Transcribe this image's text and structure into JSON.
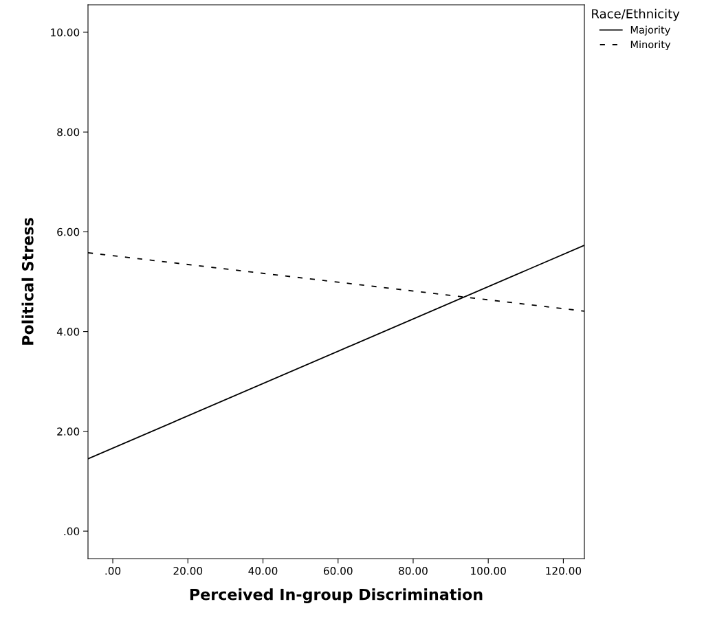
{
  "chart_data": {
    "type": "line",
    "xlabel": "Perceived In-group Discrimination",
    "ylabel": "Political Stress",
    "legend_title": "Race/Ethnicity",
    "legend": "top right",
    "grid": false,
    "marker": "none",
    "xlim": [
      -6.6,
      125.6
    ],
    "ylim": [
      -0.55,
      10.55
    ],
    "xticks": [
      {
        "value": 0,
        "label": ".00"
      },
      {
        "value": 20,
        "label": "20.00"
      },
      {
        "value": 40,
        "label": "40.00"
      },
      {
        "value": 60,
        "label": "60.00"
      },
      {
        "value": 80,
        "label": "80.00"
      },
      {
        "value": 100,
        "label": "100.00"
      },
      {
        "value": 120,
        "label": "120.00"
      }
    ],
    "yticks": [
      {
        "value": 0,
        "label": ".00"
      },
      {
        "value": 2,
        "label": "2.00"
      },
      {
        "value": 4,
        "label": "4.00"
      },
      {
        "value": 6,
        "label": "6.00"
      },
      {
        "value": 8,
        "label": "8.00"
      },
      {
        "value": 10,
        "label": "10.00"
      }
    ],
    "x": [
      -6.6,
      125.6
    ],
    "series": [
      {
        "name": "Majority",
        "color": "#000000",
        "line_style": "solid",
        "values": [
          1.45,
          5.73
        ]
      },
      {
        "name": "Minority",
        "color": "#000000",
        "line_style": "dashed",
        "values": [
          5.58,
          4.41
        ]
      }
    ]
  }
}
